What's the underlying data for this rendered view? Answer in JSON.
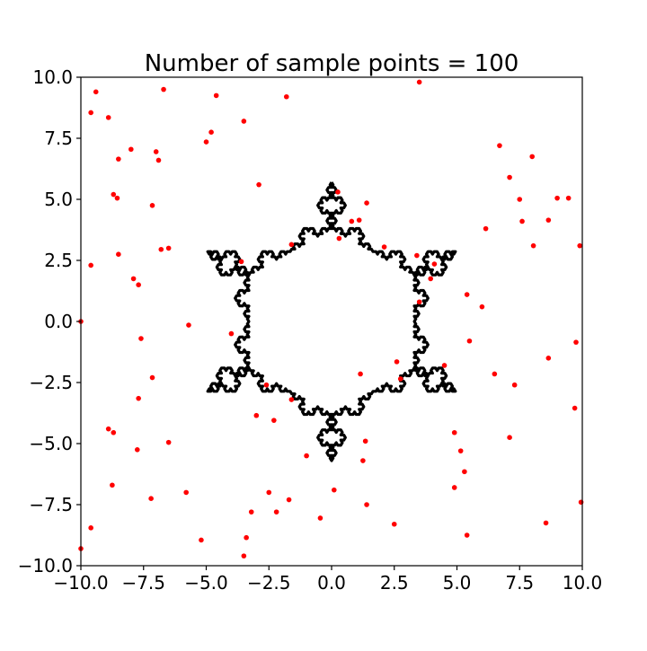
{
  "chart_data": {
    "type": "scatter",
    "title": "Number of sample points = 100",
    "xlabel": "",
    "ylabel": "",
    "xlim": [
      -10,
      10
    ],
    "ylim": [
      -10,
      10
    ],
    "xticks": [
      "−10.0",
      "−7.5",
      "−5.0",
      "−2.5",
      "0.0",
      "2.5",
      "5.0",
      "7.5",
      "10.0"
    ],
    "yticks": [
      "10.0",
      "7.5",
      "5.0",
      "2.5",
      "0.0",
      "−2.5",
      "−5.0",
      "−7.5",
      "−10.0"
    ],
    "grid": false,
    "outline": {
      "shape": "koch-snowflake-hexagram",
      "color": "#000000",
      "vertices": [
        [
          0.0,
          5.7
        ],
        [
          1.65,
          2.86
        ],
        [
          4.94,
          2.86
        ],
        [
          3.3,
          0.0
        ],
        [
          4.94,
          -2.86
        ],
        [
          1.65,
          -2.86
        ],
        [
          0.0,
          -5.7
        ],
        [
          -1.65,
          -2.86
        ],
        [
          -4.94,
          -2.86
        ],
        [
          -3.3,
          0.0
        ],
        [
          -4.94,
          2.86
        ],
        [
          -1.65,
          2.86
        ]
      ],
      "iterations": 3
    },
    "series": [
      {
        "color": "#ff0000",
        "points": [
          [
            -9.4,
            9.4
          ],
          [
            -9.6,
            8.55
          ],
          [
            -8.9,
            8.35
          ],
          [
            -6.7,
            9.5
          ],
          [
            -4.6,
            9.25
          ],
          [
            -1.8,
            9.2
          ],
          [
            3.5,
            9.8
          ],
          [
            -3.5,
            8.2
          ],
          [
            -4.8,
            7.75
          ],
          [
            -5.0,
            7.35
          ],
          [
            -8.0,
            7.05
          ],
          [
            -7.0,
            6.95
          ],
          [
            -8.5,
            6.65
          ],
          [
            -6.9,
            6.6
          ],
          [
            -2.9,
            5.6
          ],
          [
            -8.7,
            5.2
          ],
          [
            -8.55,
            5.05
          ],
          [
            -7.15,
            4.75
          ],
          [
            0.25,
            5.3
          ],
          [
            1.4,
            4.85
          ],
          [
            0.8,
            4.1
          ],
          [
            1.1,
            4.15
          ],
          [
            0.3,
            3.4
          ],
          [
            -1.6,
            3.15
          ],
          [
            2.1,
            3.05
          ],
          [
            -6.8,
            2.95
          ],
          [
            -6.5,
            3.0
          ],
          [
            -8.5,
            2.75
          ],
          [
            -9.6,
            2.3
          ],
          [
            -3.6,
            2.45
          ],
          [
            3.4,
            2.7
          ],
          [
            4.1,
            2.35
          ],
          [
            3.95,
            1.75
          ],
          [
            -7.9,
            1.75
          ],
          [
            -7.7,
            1.5
          ],
          [
            3.5,
            0.8
          ],
          [
            5.4,
            1.1
          ],
          [
            6.0,
            0.6
          ],
          [
            -10.0,
            0.0
          ],
          [
            -5.7,
            -0.15
          ],
          [
            -4.0,
            -0.5
          ],
          [
            -7.6,
            -0.7
          ],
          [
            5.5,
            -0.8
          ],
          [
            4.5,
            -1.8
          ],
          [
            2.6,
            -1.65
          ],
          [
            1.15,
            -2.15
          ],
          [
            2.75,
            -2.35
          ],
          [
            -7.15,
            -2.3
          ],
          [
            -2.6,
            -2.6
          ],
          [
            -1.6,
            -3.2
          ],
          [
            -7.7,
            -3.15
          ],
          [
            -3.0,
            -3.85
          ],
          [
            -2.3,
            -4.05
          ],
          [
            -8.9,
            -4.4
          ],
          [
            -8.7,
            -4.55
          ],
          [
            -6.5,
            -4.95
          ],
          [
            1.35,
            -4.9
          ],
          [
            4.9,
            -4.55
          ],
          [
            -7.75,
            -5.25
          ],
          [
            -1.0,
            -5.5
          ],
          [
            1.25,
            -5.7
          ],
          [
            5.15,
            -5.3
          ],
          [
            5.3,
            -6.15
          ],
          [
            -8.75,
            -6.7
          ],
          [
            4.9,
            -6.8
          ],
          [
            -5.8,
            -7.0
          ],
          [
            -2.5,
            -7.0
          ],
          [
            0.1,
            -6.9
          ],
          [
            -7.2,
            -7.25
          ],
          [
            -1.7,
            -7.3
          ],
          [
            1.4,
            -7.5
          ],
          [
            -3.2,
            -7.8
          ],
          [
            -2.2,
            -7.8
          ],
          [
            -0.45,
            -8.05
          ],
          [
            2.5,
            -8.3
          ],
          [
            -9.6,
            -8.45
          ],
          [
            -3.4,
            -8.85
          ],
          [
            5.4,
            -8.75
          ],
          [
            -5.2,
            -8.95
          ],
          [
            -3.5,
            -9.6
          ],
          [
            -10.0,
            -9.3
          ],
          [
            6.7,
            7.2
          ],
          [
            8.0,
            6.75
          ],
          [
            7.1,
            5.9
          ],
          [
            7.5,
            5.0
          ],
          [
            9.0,
            5.05
          ],
          [
            9.45,
            5.05
          ],
          [
            7.6,
            4.1
          ],
          [
            8.65,
            4.15
          ],
          [
            6.15,
            3.8
          ],
          [
            8.05,
            3.1
          ],
          [
            9.9,
            3.1
          ],
          [
            6.5,
            -2.15
          ],
          [
            7.3,
            -2.6
          ],
          [
            8.65,
            -1.5
          ],
          [
            9.75,
            -0.85
          ],
          [
            7.1,
            -4.75
          ],
          [
            9.7,
            -3.55
          ],
          [
            8.55,
            -8.25
          ],
          [
            9.95,
            -7.4
          ]
        ]
      }
    ]
  }
}
